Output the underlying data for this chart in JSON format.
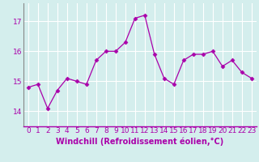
{
  "x": [
    0,
    1,
    2,
    3,
    4,
    5,
    6,
    7,
    8,
    9,
    10,
    11,
    12,
    13,
    14,
    15,
    16,
    17,
    18,
    19,
    20,
    21,
    22,
    23
  ],
  "y": [
    14.8,
    14.9,
    14.1,
    14.7,
    15.1,
    15.0,
    14.9,
    15.7,
    16.0,
    16.0,
    16.3,
    17.1,
    17.2,
    15.9,
    15.1,
    14.9,
    15.7,
    15.9,
    15.9,
    16.0,
    15.5,
    15.7,
    15.3,
    15.1
  ],
  "line_color": "#aa00aa",
  "marker": "D",
  "marker_size": 2.5,
  "bg_color": "#d4eeed",
  "grid_color": "#b8d8d8",
  "xlabel": "Windchill (Refroidissement éolien,°C)",
  "xlabel_fontsize": 7,
  "tick_fontsize": 6.5,
  "ylim": [
    13.5,
    17.6
  ],
  "xlim": [
    -0.5,
    23.5
  ],
  "yticks": [
    14,
    15,
    16,
    17
  ],
  "xticks": [
    0,
    1,
    2,
    3,
    4,
    5,
    6,
    7,
    8,
    9,
    10,
    11,
    12,
    13,
    14,
    15,
    16,
    17,
    18,
    19,
    20,
    21,
    22,
    23
  ],
  "spine_color": "#aa00aa",
  "axis_line_color": "#888888"
}
